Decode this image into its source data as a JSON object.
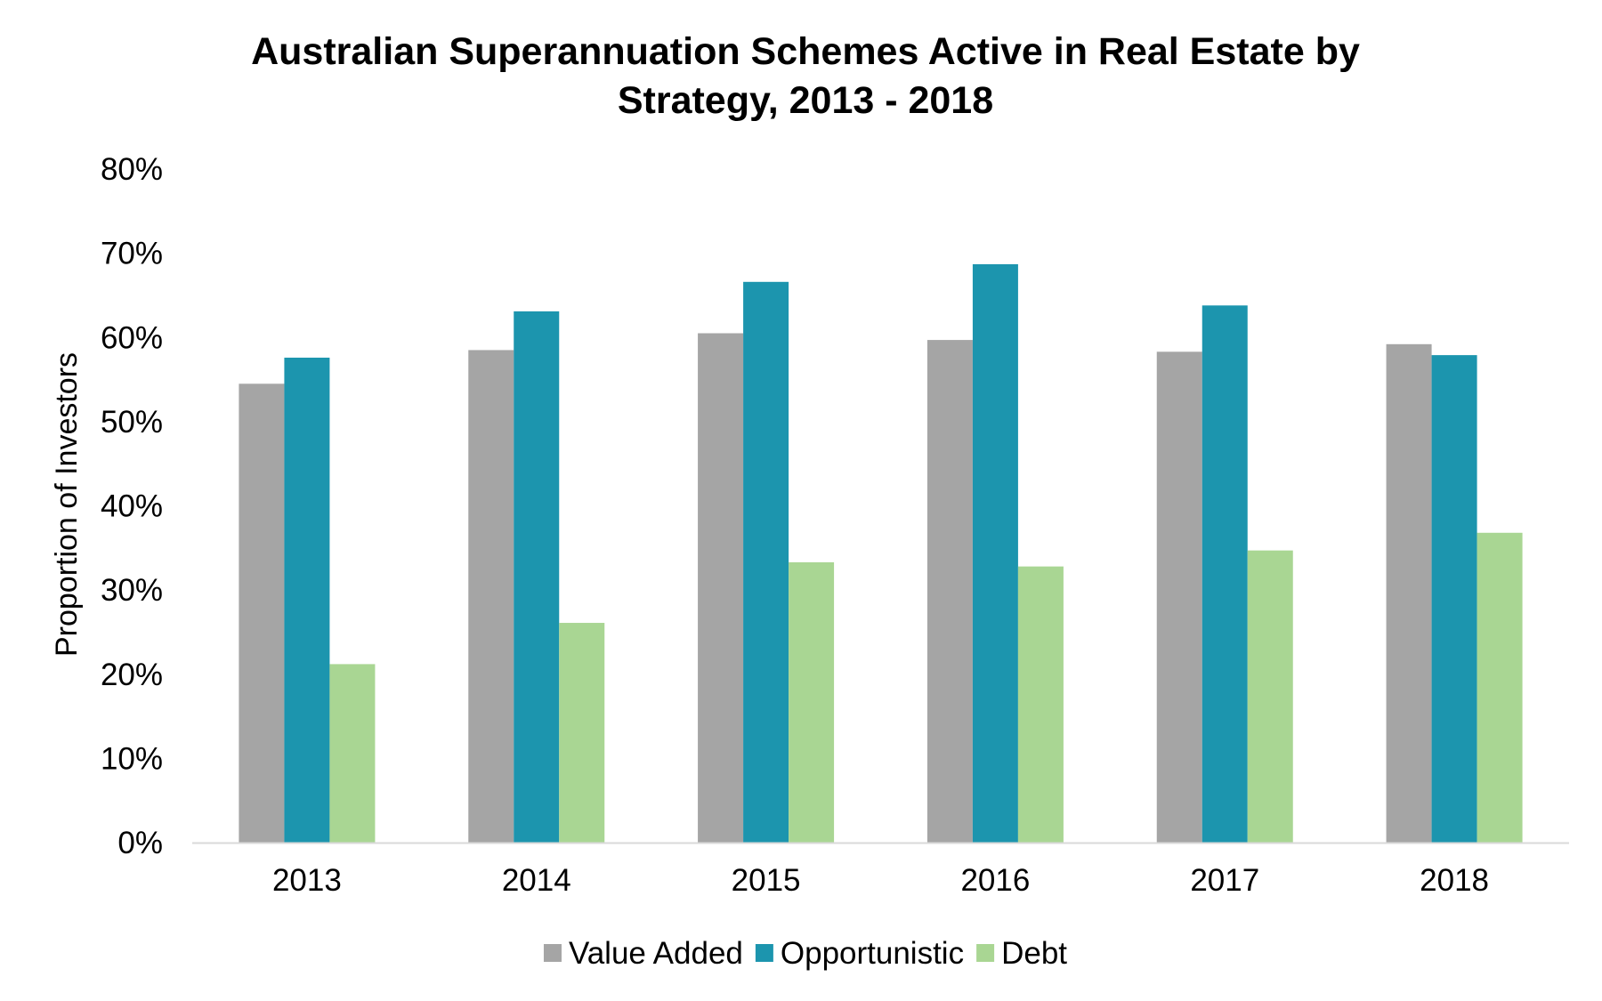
{
  "chart_data": {
    "type": "bar",
    "title_lines": [
      "Australian Superannuation Schemes Active in Real Estate by",
      "Strategy, 2013 - 2018"
    ],
    "xlabel": "",
    "ylabel": "Proportion of Investors",
    "categories": [
      "2013",
      "2014",
      "2015",
      "2016",
      "2017",
      "2018"
    ],
    "ylim": [
      0,
      80
    ],
    "yticks": [
      0,
      10,
      20,
      30,
      40,
      50,
      60,
      70,
      80
    ],
    "ytick_labels": [
      "0%",
      "10%",
      "20%",
      "30%",
      "40%",
      "50%",
      "60%",
      "70%",
      "80%"
    ],
    "grid": false,
    "legend_position": "bottom",
    "series": [
      {
        "name": "Value Added",
        "color": "#a5a5a5",
        "values": [
          54.5,
          58.5,
          60.5,
          59.7,
          58.3,
          59.2
        ]
      },
      {
        "name": "Opportunistic",
        "color": "#1c95ae",
        "values": [
          57.6,
          63.1,
          66.6,
          68.7,
          63.8,
          57.9
        ]
      },
      {
        "name": "Debt",
        "color": "#a9d693",
        "values": [
          21.2,
          26.1,
          33.3,
          32.8,
          34.7,
          36.8
        ]
      }
    ]
  }
}
